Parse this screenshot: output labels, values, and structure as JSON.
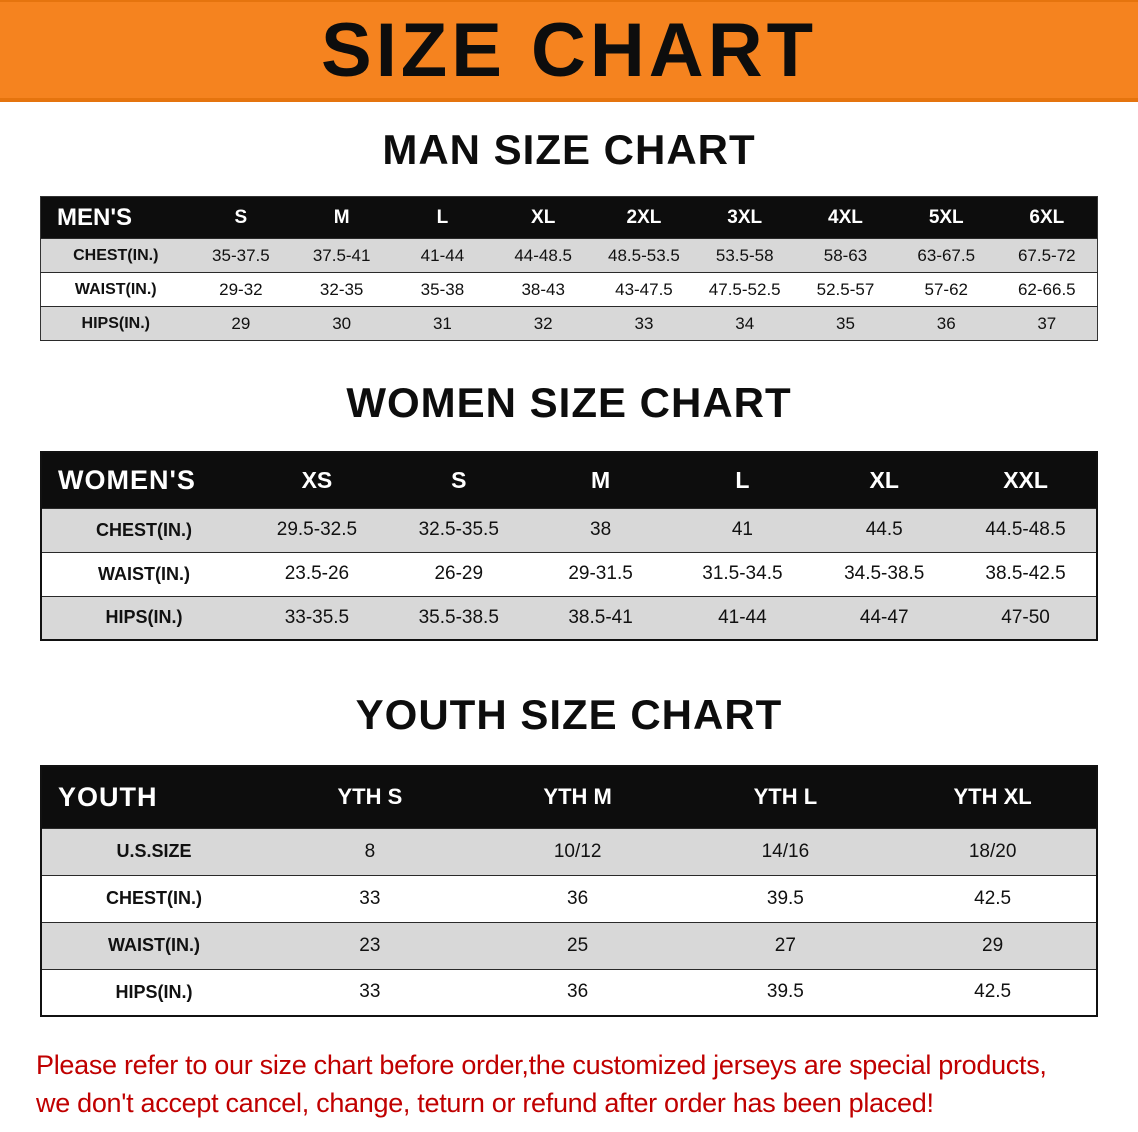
{
  "banner": {
    "title": "SIZE CHART",
    "bg_color": "#F5831F"
  },
  "men": {
    "heading": "MAN SIZE CHART",
    "label": "MEN'S",
    "columns": [
      "S",
      "M",
      "L",
      "XL",
      "2XL",
      "3XL",
      "4XL",
      "5XL",
      "6XL"
    ],
    "rows": [
      {
        "label": "CHEST(IN.)",
        "values": [
          "35-37.5",
          "37.5-41",
          "41-44",
          "44-48.5",
          "48.5-53.5",
          "53.5-58",
          "58-63",
          "63-67.5",
          "67.5-72"
        ]
      },
      {
        "label": "WAIST(IN.)",
        "values": [
          "29-32",
          "32-35",
          "35-38",
          "38-43",
          "43-47.5",
          "47.5-52.5",
          "52.5-57",
          "57-62",
          "62-66.5"
        ]
      },
      {
        "label": "HIPS(IN.)",
        "values": [
          "29",
          "30",
          "31",
          "32",
          "33",
          "34",
          "35",
          "36",
          "37"
        ]
      }
    ]
  },
  "women": {
    "heading": "WOMEN SIZE CHART",
    "label": "WOMEN'S",
    "columns": [
      "XS",
      "S",
      "M",
      "L",
      "XL",
      "XXL"
    ],
    "rows": [
      {
        "label": "CHEST(IN.)",
        "values": [
          "29.5-32.5",
          "32.5-35.5",
          "38",
          "41",
          "44.5",
          "44.5-48.5"
        ]
      },
      {
        "label": "WAIST(IN.)",
        "values": [
          "23.5-26",
          "26-29",
          "29-31.5",
          "31.5-34.5",
          "34.5-38.5",
          "38.5-42.5"
        ]
      },
      {
        "label": "HIPS(IN.)",
        "values": [
          "33-35.5",
          "35.5-38.5",
          "38.5-41",
          "41-44",
          "44-47",
          "47-50"
        ]
      }
    ]
  },
  "youth": {
    "heading": "YOUTH SIZE CHART",
    "label": "YOUTH",
    "columns": [
      "YTH S",
      "YTH M",
      "YTH L",
      "YTH XL"
    ],
    "rows": [
      {
        "label": "U.S.SIZE",
        "values": [
          "8",
          "10/12",
          "14/16",
          "18/20"
        ]
      },
      {
        "label": "CHEST(IN.)",
        "values": [
          "33",
          "36",
          "39.5",
          "42.5"
        ]
      },
      {
        "label": "WAIST(IN.)",
        "values": [
          "23",
          "25",
          "27",
          "29"
        ]
      },
      {
        "label": "HIPS(IN.)",
        "values": [
          "33",
          "36",
          "39.5",
          "42.5"
        ]
      }
    ]
  },
  "footer": {
    "line1": "Please refer to our size chart before order,the customized jerseys are special products,",
    "line2": "we don't accept cancel, change, teturn or refund after order has been placed!",
    "color": "#C00000"
  }
}
